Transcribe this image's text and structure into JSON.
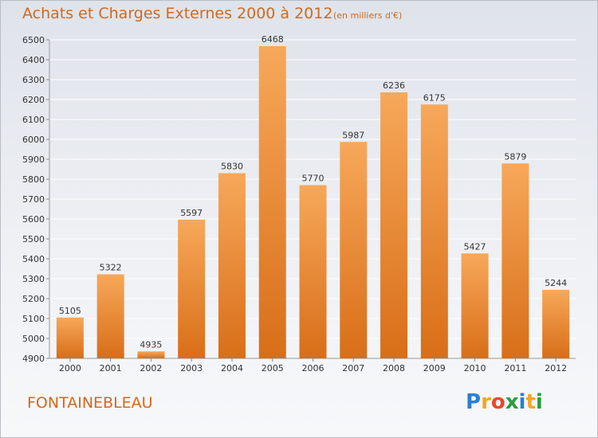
{
  "header": {
    "title": "Achats et Charges Externes 2000 à 2012",
    "subtitle": "(en milliers d'€)"
  },
  "footer": {
    "city": "FONTAINEBLEAU",
    "brand": [
      "P",
      "r",
      "o",
      "x",
      "i",
      "t",
      "i"
    ],
    "brand_colors": [
      "#2a7fd4",
      "#f5a623",
      "#e8472b",
      "#2a9d3f",
      "#2a7fd4",
      "#f5a623",
      "#2a9d3f"
    ]
  },
  "colors": {
    "bar_light": "#f7a85a",
    "bar_dark": "#d86e18",
    "title": "#d2691e",
    "grid": "#ffffff",
    "axis_text": "#333333"
  },
  "chart_data": {
    "type": "bar",
    "categories": [
      "2000",
      "2001",
      "2002",
      "2003",
      "2004",
      "2005",
      "2006",
      "2007",
      "2008",
      "2009",
      "2010",
      "2011",
      "2012"
    ],
    "values": [
      5105,
      5322,
      4935,
      5597,
      5830,
      6468,
      5770,
      5987,
      6236,
      6175,
      5427,
      5879,
      5244
    ],
    "ylim": [
      4900,
      6500
    ],
    "yticks": [
      4900,
      5000,
      5100,
      5200,
      5300,
      5400,
      5500,
      5600,
      5700,
      5800,
      5900,
      6000,
      6100,
      6200,
      6300,
      6400,
      6500
    ],
    "grid": true
  }
}
